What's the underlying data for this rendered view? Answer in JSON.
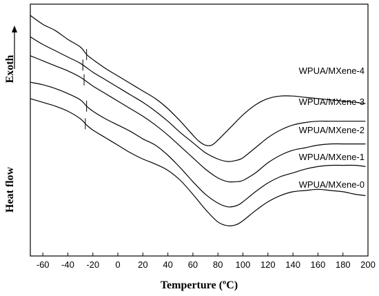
{
  "chart_data": {
    "type": "line",
    "xlabel": "Temperture (ºC)",
    "ylabel": "Heat flow",
    "exo_label": "Exoth",
    "xlim": [
      -70,
      200
    ],
    "x_ticks": [
      -60,
      -40,
      -20,
      0,
      20,
      40,
      60,
      80,
      100,
      120,
      140,
      160,
      180,
      200
    ],
    "y_ticks_shown": false,
    "series": [
      {
        "name": "WPUA/MXene-4",
        "tg_marker_x": -25,
        "points": [
          [
            -70,
            0.955
          ],
          [
            -60,
            0.92
          ],
          [
            -50,
            0.895
          ],
          [
            -40,
            0.86
          ],
          [
            -30,
            0.83
          ],
          [
            -25,
            0.8
          ],
          [
            -20,
            0.78
          ],
          [
            -10,
            0.745
          ],
          [
            0,
            0.715
          ],
          [
            10,
            0.685
          ],
          [
            20,
            0.655
          ],
          [
            30,
            0.625
          ],
          [
            40,
            0.585
          ],
          [
            50,
            0.535
          ],
          [
            60,
            0.48
          ],
          [
            65,
            0.455
          ],
          [
            70,
            0.44
          ],
          [
            75,
            0.44
          ],
          [
            80,
            0.46
          ],
          [
            90,
            0.51
          ],
          [
            100,
            0.56
          ],
          [
            110,
            0.6
          ],
          [
            120,
            0.625
          ],
          [
            130,
            0.635
          ],
          [
            140,
            0.635
          ],
          [
            150,
            0.63
          ],
          [
            160,
            0.625
          ],
          [
            170,
            0.62
          ],
          [
            180,
            0.615
          ],
          [
            190,
            0.61
          ],
          [
            198,
            0.605
          ]
        ]
      },
      {
        "name": "WPUA/MXene-3",
        "tg_marker_x": -28,
        "points": [
          [
            -70,
            0.87
          ],
          [
            -60,
            0.84
          ],
          [
            -50,
            0.815
          ],
          [
            -40,
            0.79
          ],
          [
            -30,
            0.765
          ],
          [
            -20,
            0.73
          ],
          [
            -10,
            0.7
          ],
          [
            0,
            0.67
          ],
          [
            10,
            0.64
          ],
          [
            20,
            0.61
          ],
          [
            30,
            0.575
          ],
          [
            40,
            0.535
          ],
          [
            50,
            0.49
          ],
          [
            60,
            0.45
          ],
          [
            70,
            0.41
          ],
          [
            80,
            0.385
          ],
          [
            88,
            0.375
          ],
          [
            95,
            0.38
          ],
          [
            100,
            0.39
          ],
          [
            110,
            0.43
          ],
          [
            120,
            0.47
          ],
          [
            130,
            0.5
          ],
          [
            140,
            0.52
          ],
          [
            150,
            0.53
          ],
          [
            160,
            0.535
          ],
          [
            170,
            0.535
          ],
          [
            180,
            0.535
          ],
          [
            190,
            0.535
          ],
          [
            198,
            0.535
          ]
        ]
      },
      {
        "name": "WPUA/MXene-2",
        "tg_marker_x": -27,
        "points": [
          [
            -70,
            0.795
          ],
          [
            -60,
            0.775
          ],
          [
            -50,
            0.755
          ],
          [
            -40,
            0.735
          ],
          [
            -30,
            0.71
          ],
          [
            -20,
            0.675
          ],
          [
            -10,
            0.645
          ],
          [
            0,
            0.615
          ],
          [
            10,
            0.585
          ],
          [
            20,
            0.555
          ],
          [
            30,
            0.52
          ],
          [
            40,
            0.48
          ],
          [
            50,
            0.435
          ],
          [
            60,
            0.39
          ],
          [
            70,
            0.345
          ],
          [
            80,
            0.31
          ],
          [
            88,
            0.295
          ],
          [
            95,
            0.295
          ],
          [
            100,
            0.3
          ],
          [
            110,
            0.33
          ],
          [
            120,
            0.37
          ],
          [
            130,
            0.4
          ],
          [
            140,
            0.42
          ],
          [
            150,
            0.43
          ],
          [
            160,
            0.44
          ],
          [
            170,
            0.445
          ],
          [
            180,
            0.445
          ],
          [
            190,
            0.445
          ],
          [
            198,
            0.445
          ]
        ]
      },
      {
        "name": "WPUA/MXene-1",
        "tg_marker_x": -25,
        "points": [
          [
            -70,
            0.69
          ],
          [
            -60,
            0.68
          ],
          [
            -50,
            0.665
          ],
          [
            -40,
            0.645
          ],
          [
            -30,
            0.62
          ],
          [
            -25,
            0.595
          ],
          [
            -20,
            0.575
          ],
          [
            -10,
            0.545
          ],
          [
            0,
            0.52
          ],
          [
            10,
            0.495
          ],
          [
            20,
            0.465
          ],
          [
            30,
            0.44
          ],
          [
            40,
            0.4
          ],
          [
            50,
            0.35
          ],
          [
            60,
            0.295
          ],
          [
            70,
            0.245
          ],
          [
            80,
            0.21
          ],
          [
            88,
            0.195
          ],
          [
            95,
            0.2
          ],
          [
            100,
            0.215
          ],
          [
            110,
            0.255
          ],
          [
            120,
            0.29
          ],
          [
            130,
            0.315
          ],
          [
            140,
            0.33
          ],
          [
            150,
            0.345
          ],
          [
            160,
            0.355
          ],
          [
            170,
            0.36
          ],
          [
            180,
            0.36
          ],
          [
            190,
            0.36
          ],
          [
            198,
            0.355
          ]
        ]
      },
      {
        "name": "WPUA/MXene-0",
        "tg_marker_x": -26,
        "points": [
          [
            -70,
            0.625
          ],
          [
            -60,
            0.61
          ],
          [
            -50,
            0.595
          ],
          [
            -40,
            0.575
          ],
          [
            -30,
            0.545
          ],
          [
            -25,
            0.52
          ],
          [
            -20,
            0.5
          ],
          [
            -10,
            0.47
          ],
          [
            0,
            0.44
          ],
          [
            10,
            0.41
          ],
          [
            20,
            0.385
          ],
          [
            30,
            0.365
          ],
          [
            40,
            0.34
          ],
          [
            50,
            0.3
          ],
          [
            60,
            0.245
          ],
          [
            70,
            0.185
          ],
          [
            80,
            0.135
          ],
          [
            88,
            0.12
          ],
          [
            95,
            0.125
          ],
          [
            100,
            0.14
          ],
          [
            110,
            0.18
          ],
          [
            120,
            0.215
          ],
          [
            130,
            0.24
          ],
          [
            140,
            0.255
          ],
          [
            150,
            0.26
          ],
          [
            160,
            0.265
          ],
          [
            170,
            0.26
          ],
          [
            180,
            0.255
          ],
          [
            190,
            0.245
          ],
          [
            198,
            0.24
          ]
        ]
      }
    ]
  }
}
